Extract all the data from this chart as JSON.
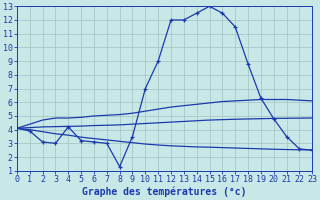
{
  "hours": [
    0,
    1,
    2,
    3,
    4,
    5,
    6,
    7,
    8,
    9,
    10,
    11,
    12,
    13,
    14,
    15,
    16,
    17,
    18,
    19,
    20,
    21,
    22,
    23
  ],
  "temp_main": [
    4.1,
    3.9,
    3.1,
    3.0,
    4.2,
    3.2,
    3.1,
    3.0,
    1.3,
    3.5,
    7.0,
    9.0,
    12.0,
    12.0,
    12.5,
    13.0,
    12.5,
    11.5,
    8.8,
    6.3,
    4.8,
    3.5,
    2.6,
    2.5
  ],
  "temp_max_line": [
    4.1,
    4.4,
    4.7,
    4.85,
    4.85,
    4.9,
    5.0,
    5.05,
    5.1,
    5.2,
    5.35,
    5.5,
    5.65,
    5.75,
    5.85,
    5.95,
    6.05,
    6.1,
    6.15,
    6.2,
    6.2,
    6.2,
    6.15,
    6.1
  ],
  "temp_min_line": [
    4.1,
    4.0,
    3.85,
    3.7,
    3.6,
    3.45,
    3.35,
    3.25,
    3.15,
    3.05,
    2.95,
    2.88,
    2.82,
    2.78,
    2.74,
    2.72,
    2.69,
    2.66,
    2.63,
    2.6,
    2.57,
    2.55,
    2.53,
    2.52
  ],
  "temp_avg_line": [
    4.1,
    4.15,
    4.2,
    4.22,
    4.24,
    4.26,
    4.3,
    4.32,
    4.35,
    4.4,
    4.45,
    4.5,
    4.55,
    4.6,
    4.65,
    4.7,
    4.73,
    4.76,
    4.78,
    4.8,
    4.82,
    4.83,
    4.84,
    4.85
  ],
  "line_color": "#1a3aab",
  "bg_color": "#c8e8e8",
  "grid_color": "#a8c8c8",
  "xlabel": "Graphe des températures (°c)",
  "xlabel_fontsize": 7,
  "ylabel_min": 1,
  "ylabel_max": 13,
  "tick_fontsize": 6
}
